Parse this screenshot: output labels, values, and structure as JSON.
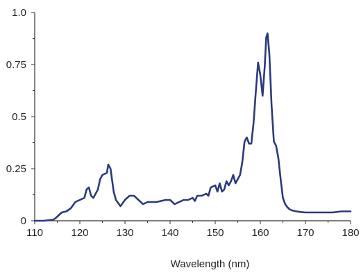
{
  "chart_data": {
    "type": "line",
    "title": "",
    "xlabel": "Wavelength (nm)",
    "ylabel": "",
    "xlim": [
      110,
      180
    ],
    "ylim": [
      0,
      1.0
    ],
    "x_ticks": [
      110,
      120,
      130,
      140,
      150,
      160,
      170,
      180
    ],
    "x_tick_labels": [
      "110",
      "120",
      "130",
      "140",
      "150",
      "160",
      "170",
      "180"
    ],
    "y_ticks": [
      0,
      0.25,
      0.5,
      0.75,
      1.0
    ],
    "y_tick_labels": [
      "0",
      "0.25",
      "0.5",
      "0.75",
      "1.0"
    ],
    "grid": false,
    "legend": "none",
    "series": [
      {
        "color": "#2b3a7a",
        "x": [
          110,
          112,
          114,
          114.5,
          115,
          116,
          117,
          118,
          119,
          120,
          121,
          121.5,
          122,
          122.5,
          123,
          124,
          124.5,
          125,
          126,
          126.3,
          126.8,
          127.5,
          128,
          129,
          130,
          131,
          132,
          133,
          134,
          135,
          136,
          137,
          138,
          139,
          140,
          141,
          142,
          143,
          144,
          145,
          145.5,
          146,
          147,
          148,
          148.5,
          149,
          150,
          150.5,
          151,
          151.5,
          152,
          152.5,
          153,
          153.5,
          154,
          154.5,
          155,
          155.5,
          156,
          156.5,
          157,
          157.5,
          158,
          158.5,
          159,
          159.5,
          160,
          160.5,
          161,
          161.3,
          161.6,
          162,
          162.5,
          163,
          163.5,
          164,
          164.5,
          165,
          165.5,
          166,
          166.5,
          167,
          168,
          169,
          170,
          172,
          174,
          176,
          178,
          180
        ],
        "y": [
          0,
          0,
          0.005,
          0.01,
          0.02,
          0.04,
          0.045,
          0.06,
          0.09,
          0.1,
          0.11,
          0.15,
          0.16,
          0.12,
          0.11,
          0.15,
          0.2,
          0.22,
          0.23,
          0.27,
          0.25,
          0.14,
          0.1,
          0.07,
          0.1,
          0.12,
          0.12,
          0.1,
          0.08,
          0.09,
          0.09,
          0.09,
          0.095,
          0.1,
          0.1,
          0.08,
          0.09,
          0.1,
          0.1,
          0.11,
          0.095,
          0.12,
          0.12,
          0.13,
          0.12,
          0.16,
          0.17,
          0.14,
          0.18,
          0.14,
          0.15,
          0.19,
          0.17,
          0.19,
          0.22,
          0.18,
          0.2,
          0.22,
          0.28,
          0.38,
          0.4,
          0.37,
          0.37,
          0.47,
          0.62,
          0.76,
          0.7,
          0.6,
          0.75,
          0.88,
          0.9,
          0.8,
          0.55,
          0.38,
          0.36,
          0.3,
          0.2,
          0.11,
          0.08,
          0.065,
          0.055,
          0.05,
          0.045,
          0.042,
          0.04,
          0.04,
          0.04,
          0.04,
          0.045,
          0.045
        ]
      }
    ]
  }
}
